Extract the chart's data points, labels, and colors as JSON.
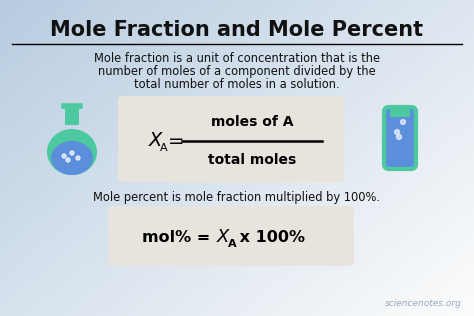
{
  "title": "Mole Fraction and Mole Percent",
  "desc1": "Mole fraction is a unit of concentration that is the",
  "desc2": "number of moles of a component divided by the",
  "desc3": "total number of moles in a solution.",
  "numerator": "moles of A",
  "denominator": "total moles",
  "mole_pct_text": "Mole percent is mole fraction multiplied by 100%.",
  "watermark": "sciencenotes.org",
  "box_color": "#e8e4dd",
  "title_color": "#111111",
  "text_color": "#111111",
  "watermark_color": "#99aabb",
  "flask_green": "#4dc9a0",
  "flask_blue": "#5b8fdb",
  "tube_green": "#4dc9a0",
  "tube_blue": "#5b8fdb"
}
